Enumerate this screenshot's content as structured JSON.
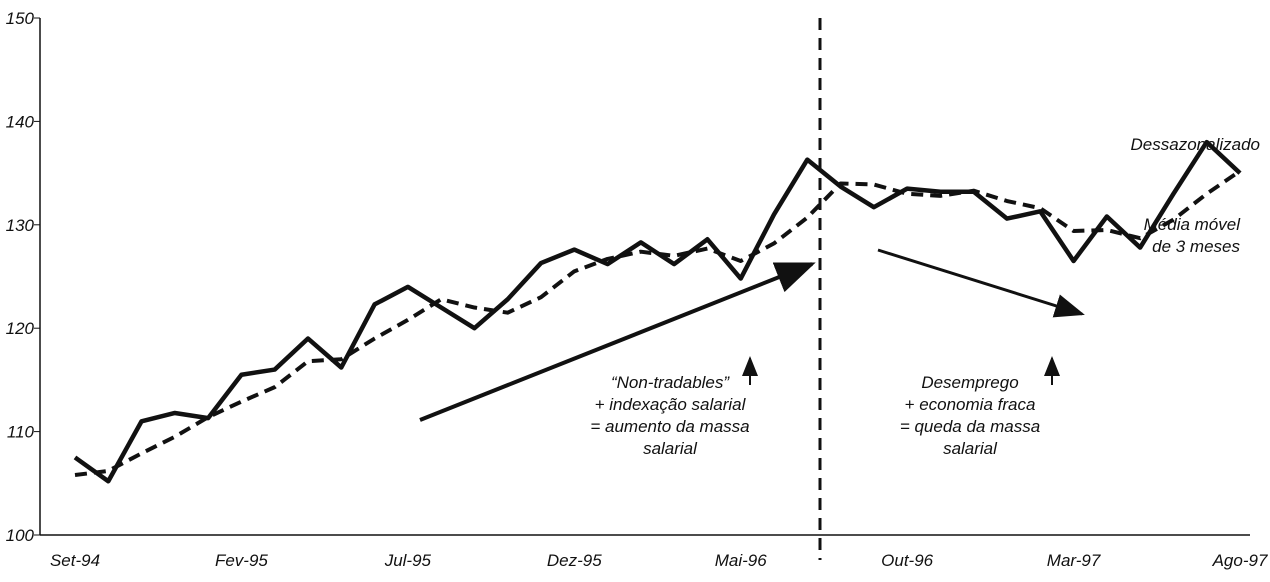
{
  "chart_data": {
    "type": "line",
    "categories": [
      "Set-94",
      null,
      null,
      null,
      null,
      "Fev-95",
      null,
      null,
      null,
      null,
      "Jul-95",
      null,
      null,
      null,
      null,
      "Dez-95",
      null,
      null,
      null,
      null,
      "Mai-96",
      null,
      null,
      null,
      null,
      "Out-96",
      null,
      null,
      null,
      null,
      "Mar-97",
      null,
      null,
      null,
      null,
      "Ago-97"
    ],
    "series": [
      {
        "name": "Dessazonalizado",
        "color": "#111111",
        "dash": false,
        "values": [
          107.5,
          105.2,
          111,
          111.8,
          111.3,
          115.5,
          116,
          119,
          116.2,
          122.3,
          124,
          122,
          120,
          122.8,
          126.3,
          127.6,
          126.2,
          128.3,
          126.2,
          128.6,
          124.8,
          131,
          136.3,
          133.7,
          131.7,
          133.5,
          133.2,
          133.2,
          130.6,
          131.3,
          126.5,
          130.8,
          127.8,
          133,
          138,
          135
        ]
      },
      {
        "name": "Média móvel de 3 meses",
        "color": "#111111",
        "dash": true,
        "values": [
          105.8,
          106.2,
          107.9,
          109.5,
          111.4,
          112.9,
          114.3,
          116.8,
          117,
          119,
          120.8,
          122.8,
          122,
          121.5,
          123,
          125.5,
          126.7,
          127.4,
          127,
          127.7,
          126.5,
          128.2,
          130.7,
          134,
          133.9,
          133,
          132.8,
          133.3,
          132.3,
          131.6,
          129.4,
          129.5,
          128.7,
          130.5,
          133,
          135.2
        ]
      }
    ],
    "ylim": [
      100,
      150
    ],
    "yticks": [
      100,
      110,
      120,
      130,
      140,
      150
    ],
    "grid": false,
    "annotations": [
      [
        "“Non-tradables”",
        "+ indexação salarial",
        "= aumento da massa",
        "salarial"
      ],
      [
        "Desemprego",
        "+ economia fraca",
        "= queda da massa",
        "salarial"
      ]
    ]
  }
}
